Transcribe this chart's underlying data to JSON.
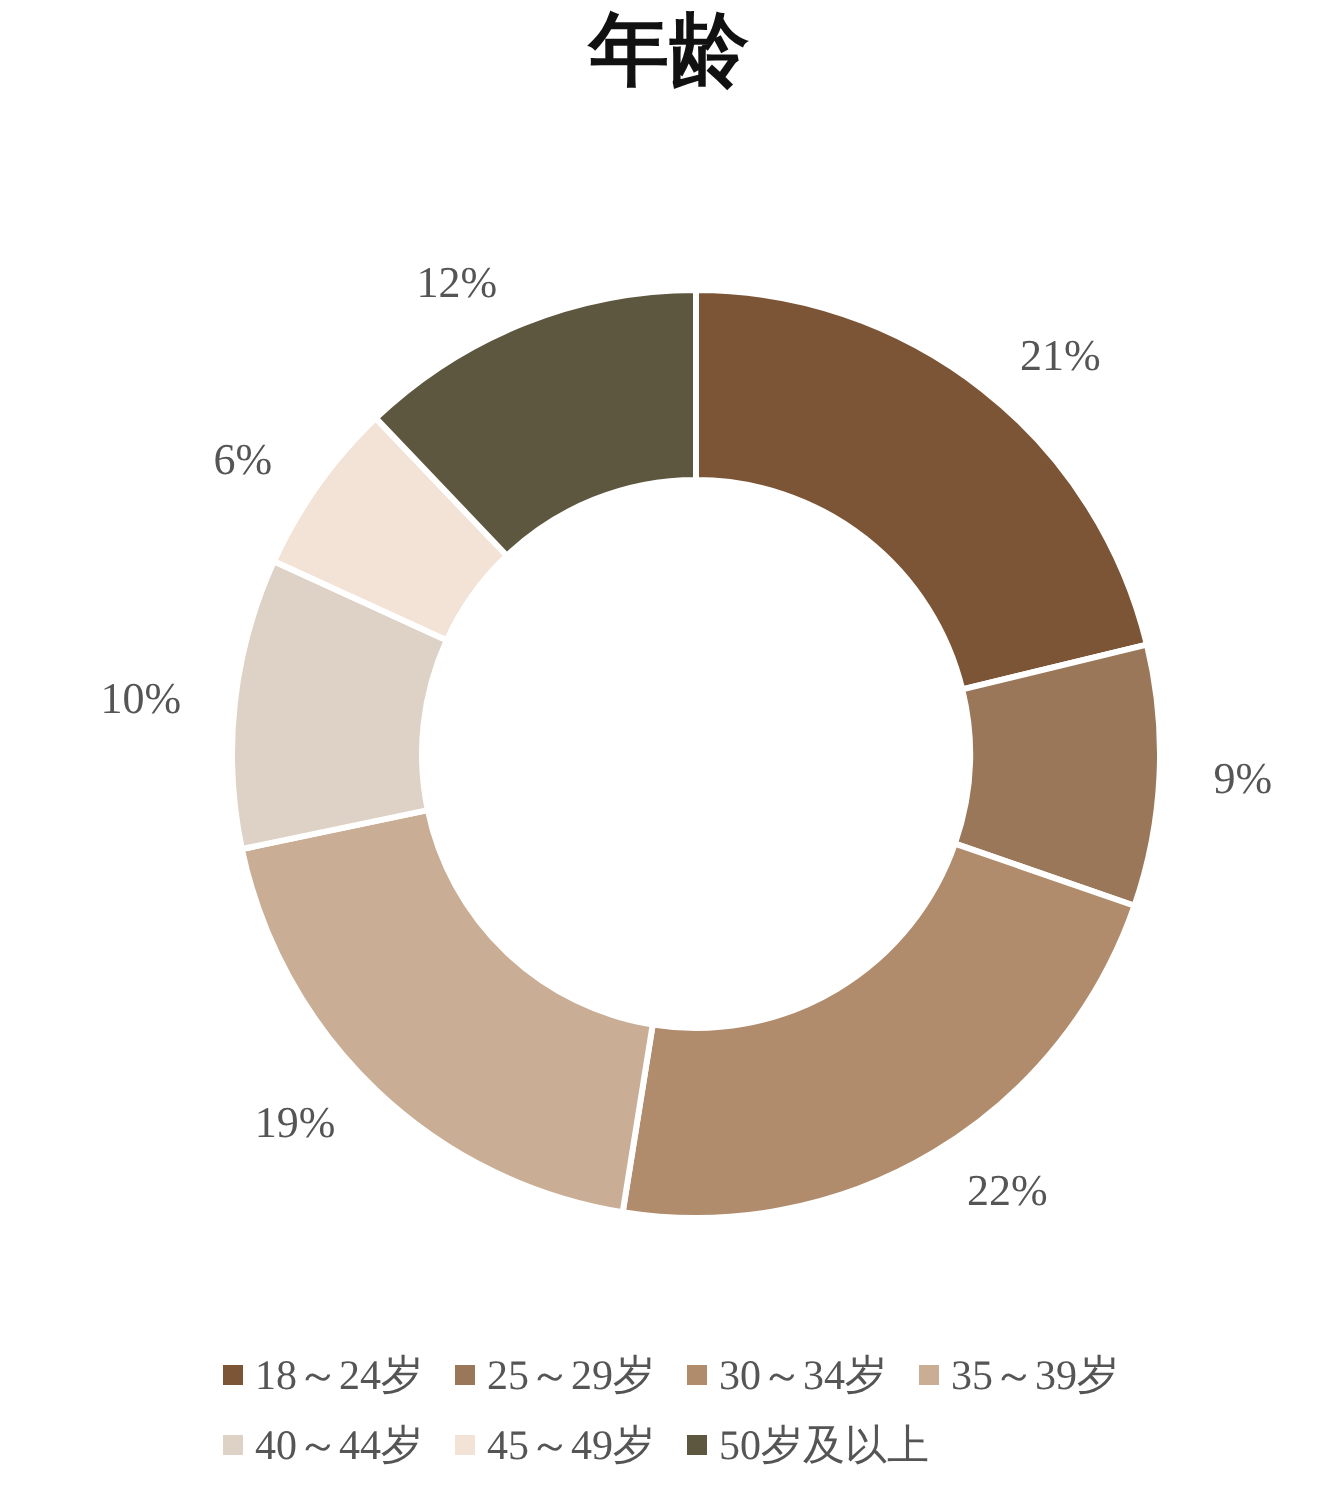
{
  "chart_data": {
    "type": "donut",
    "title": "年龄",
    "categories": [
      "18～24岁",
      "25～29岁",
      "30～34岁",
      "35～39岁",
      "40～44岁",
      "45～49岁",
      "50岁及以上"
    ],
    "values": [
      21,
      9,
      22,
      19,
      10,
      6,
      12
    ],
    "value_labels": [
      "21%",
      "9%",
      "22%",
      "19%",
      "10%",
      "6%",
      "12%"
    ],
    "colors": [
      "#7b5535",
      "#9a7758",
      "#b08c6c",
      "#c9ad94",
      "#ddd2c5",
      "#f3e3d6",
      "#5e573f"
    ],
    "legend": "bottom"
  }
}
